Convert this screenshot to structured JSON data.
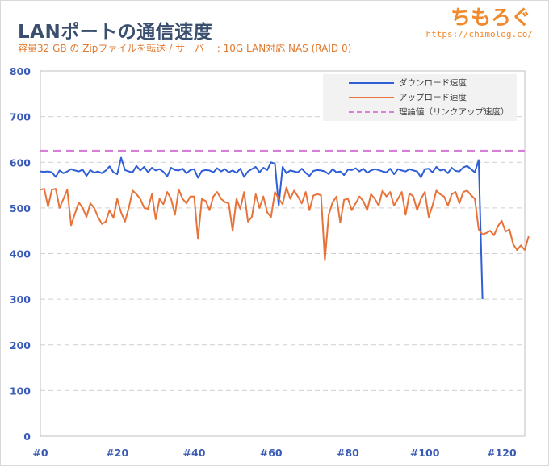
{
  "header": {
    "title": "LANポートの通信速度",
    "subtitle": "容量32 GB の Zipファイルを転送 / サーバー : 10G LAN対応 NAS (RAID 0)"
  },
  "logo": {
    "name": "ちもろぐ",
    "url": "https://chimolog.co/"
  },
  "colors": {
    "download": "#2f5fd6",
    "upload": "#e8733a",
    "theory": "#d57fd6",
    "yaxis": "#3a5bb5",
    "grid": "#d0d0d0"
  },
  "chart_data": {
    "type": "line",
    "xlim": [
      0,
      126
    ],
    "ylim": [
      0,
      800
    ],
    "x_ticks": [
      "#0",
      "#20",
      "#40",
      "#60",
      "#80",
      "#100",
      "#120"
    ],
    "y_ticks": [
      "0",
      "100",
      "200",
      "300",
      "400",
      "500",
      "600",
      "700",
      "800"
    ],
    "grid": "horizontal dashed",
    "legend_position": "top-right",
    "theory_value": 625,
    "series": [
      {
        "name": "ダウンロード速度",
        "x_start": 0,
        "values": [
          580,
          579,
          580,
          578,
          568,
          582,
          576,
          580,
          585,
          582,
          580,
          584,
          570,
          583,
          577,
          580,
          576,
          582,
          591,
          578,
          574,
          610,
          583,
          580,
          578,
          592,
          582,
          590,
          578,
          588,
          582,
          585,
          579,
          569,
          588,
          583,
          582,
          586,
          576,
          583,
          585,
          566,
          581,
          583,
          582,
          578,
          587,
          580,
          585,
          578,
          582,
          577,
          586,
          568,
          580,
          585,
          590,
          578,
          588,
          583,
          600,
          597,
          505,
          590,
          576,
          582,
          580,
          578,
          586,
          577,
          570,
          581,
          583,
          582,
          580,
          574,
          585,
          578,
          580,
          572,
          584,
          583,
          587,
          580,
          586,
          577,
          582,
          585,
          583,
          580,
          578,
          586,
          574,
          585,
          582,
          580,
          585,
          582,
          580,
          567,
          585,
          586,
          578,
          590,
          582,
          584,
          576,
          588,
          581,
          580,
          589,
          592,
          585,
          578,
          605,
          300
        ]
      },
      {
        "name": "アップロード速度",
        "x_start": 0,
        "values": [
          540,
          542,
          503,
          540,
          542,
          500,
          520,
          540,
          462,
          488,
          512,
          500,
          480,
          510,
          500,
          480,
          465,
          470,
          495,
          478,
          520,
          490,
          470,
          500,
          538,
          530,
          520,
          500,
          498,
          530,
          475,
          520,
          508,
          535,
          520,
          485,
          540,
          520,
          510,
          525,
          525,
          432,
          520,
          515,
          495,
          525,
          535,
          520,
          513,
          510,
          450,
          520,
          498,
          535,
          470,
          480,
          530,
          500,
          525,
          490,
          480,
          535,
          520,
          508,
          545,
          520,
          538,
          525,
          510,
          535,
          495,
          527,
          530,
          528,
          385,
          485,
          512,
          525,
          468,
          518,
          520,
          495,
          510,
          525,
          515,
          495,
          530,
          520,
          505,
          538,
          525,
          535,
          505,
          520,
          535,
          485,
          532,
          525,
          495,
          520,
          535,
          480,
          505,
          538,
          530,
          525,
          505,
          530,
          535,
          510,
          535,
          538,
          528,
          520,
          453,
          442,
          445,
          450,
          440,
          460,
          472,
          448,
          453,
          420,
          408,
          418,
          408,
          438
        ]
      },
      {
        "name": "理論値（リンクアップ速度）",
        "x_start": 0,
        "values": []
      }
    ]
  }
}
